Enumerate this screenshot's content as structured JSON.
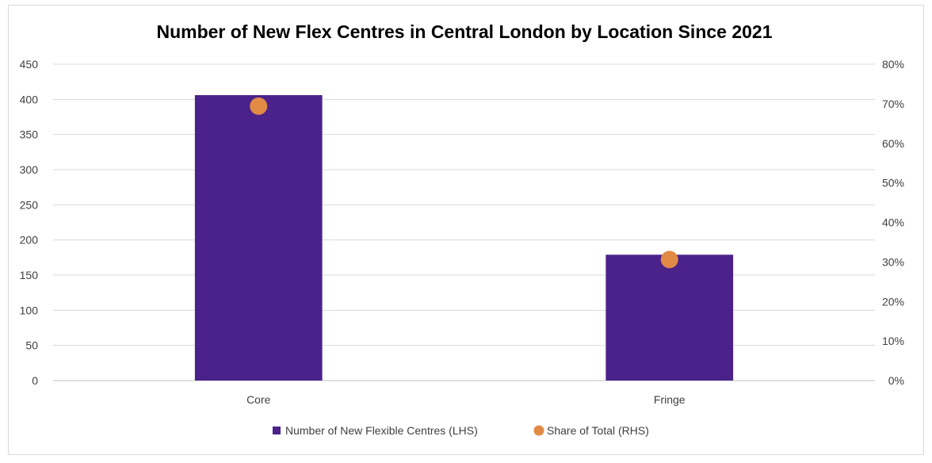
{
  "chart_data": {
    "type": "bar",
    "title": "Number of New Flex Centres in Central London by Location Since 2021",
    "categories": [
      "Core",
      "Fringe"
    ],
    "series": [
      {
        "name": "Number of New Flexible Centres (LHS)",
        "type": "bar",
        "axis": "left",
        "color": "#4b228a",
        "values": [
          406,
          179
        ]
      },
      {
        "name": "Share of Total (RHS)",
        "type": "scatter",
        "axis": "right",
        "color": "#e08a45",
        "values": [
          0.694,
          0.306
        ]
      }
    ],
    "ylim": [
      0,
      450
    ],
    "yticks": [
      "0",
      "50",
      "100",
      "150",
      "200",
      "250",
      "300",
      "350",
      "400",
      "450"
    ],
    "y2lim": [
      0,
      0.8
    ],
    "y2ticks": [
      "0%",
      "10%",
      "20%",
      "30%",
      "40%",
      "50%",
      "60%",
      "70%",
      "80%"
    ],
    "grid": true,
    "legend": "bottom"
  }
}
